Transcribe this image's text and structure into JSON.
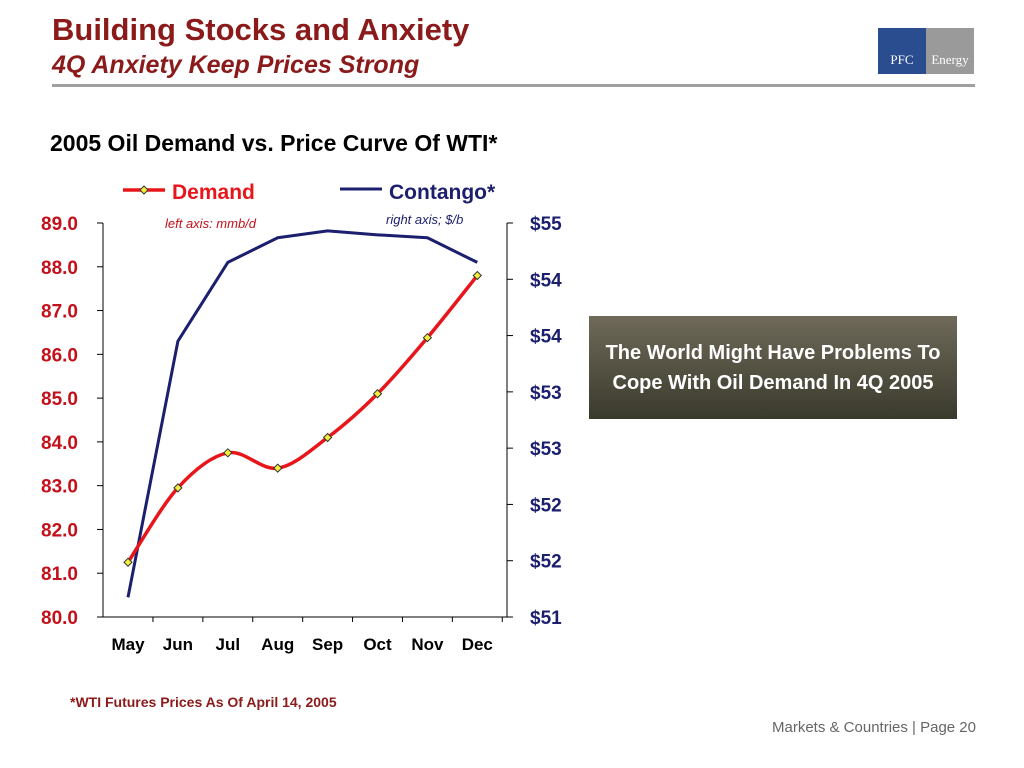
{
  "header": {
    "title": "Building Stocks and Anxiety",
    "subtitle": "4Q Anxiety Keep Prices Strong",
    "logo_left": "PFC",
    "logo_right": "Energy"
  },
  "callout": "The World Might  Have Problems To Cope With Oil Demand In 4Q 2005",
  "footnote": "*WTI Futures Prices As Of April 14, 2005",
  "footer": "Markets & Countries  |  Page 20",
  "colors": {
    "demand": "#e8161b",
    "contango": "#1b1f6e",
    "left_axis_text": "#c4101a",
    "right_axis_text": "#1b1f6e",
    "marker": "#f2ee3a"
  },
  "chart_data": {
    "type": "line",
    "title": "2005 Oil Demand vs. Price Curve Of WTI*",
    "categories": [
      "May",
      "Jun",
      "Jul",
      "Aug",
      "Sep",
      "Oct",
      "Nov",
      "Dec"
    ],
    "legend_position": "top",
    "left_axis": {
      "note": "left axis: mmb/d",
      "range": [
        80.0,
        89.0
      ],
      "ticks": [
        "80.0",
        "81.0",
        "82.0",
        "83.0",
        "84.0",
        "85.0",
        "86.0",
        "87.0",
        "88.0",
        "89.0"
      ]
    },
    "right_axis": {
      "note": "right axis; $/b",
      "range": [
        51,
        55
      ],
      "ticks": [
        "$51",
        "$52",
        "$52",
        "$53",
        "$53",
        "$54",
        "$54",
        "$55"
      ]
    },
    "series": [
      {
        "name": "Demand",
        "axis": "left",
        "markers": true,
        "values": [
          81.25,
          82.95,
          83.75,
          83.4,
          84.1,
          85.1,
          86.38,
          87.8
        ]
      },
      {
        "name": "Contango*",
        "axis": "right",
        "markers": false,
        "values": [
          51.2,
          53.8,
          54.6,
          54.85,
          54.92,
          54.88,
          54.85,
          54.6
        ]
      }
    ]
  }
}
